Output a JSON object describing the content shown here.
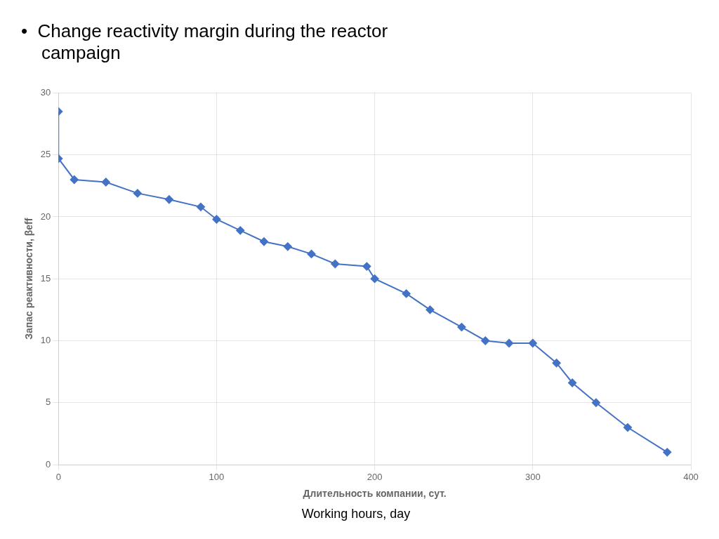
{
  "chart_data": {
    "type": "line",
    "title": [
      "•  Change reactivity margin during the reactor",
      "    campaign"
    ],
    "xlabel": "Длительность компании, сут.",
    "subtitle": "Working hours, day",
    "ylabel": "Запас реактивности, βeff",
    "x": [
      0,
      0,
      10,
      30,
      50,
      70,
      90,
      100,
      115,
      130,
      145,
      160,
      175,
      195,
      200,
      220,
      235,
      255,
      270,
      285,
      300,
      315,
      325,
      340,
      360,
      385
    ],
    "values": [
      28.5,
      24.7,
      23.0,
      22.8,
      21.9,
      21.4,
      20.8,
      19.8,
      18.9,
      18.0,
      17.6,
      17.0,
      16.2,
      16.0,
      15.0,
      13.8,
      12.5,
      11.1,
      10.0,
      9.8,
      9.8,
      8.2,
      6.6,
      5.0,
      3.0,
      1.0
    ],
    "color": "#4472C4",
    "marker": "diamond",
    "xlim": [
      0,
      400
    ],
    "ylim": [
      0,
      30
    ],
    "xticks": [
      0,
      100,
      200,
      300,
      400
    ],
    "yticks": [
      0,
      5,
      10,
      15,
      20,
      25,
      30
    ],
    "grid": true
  }
}
